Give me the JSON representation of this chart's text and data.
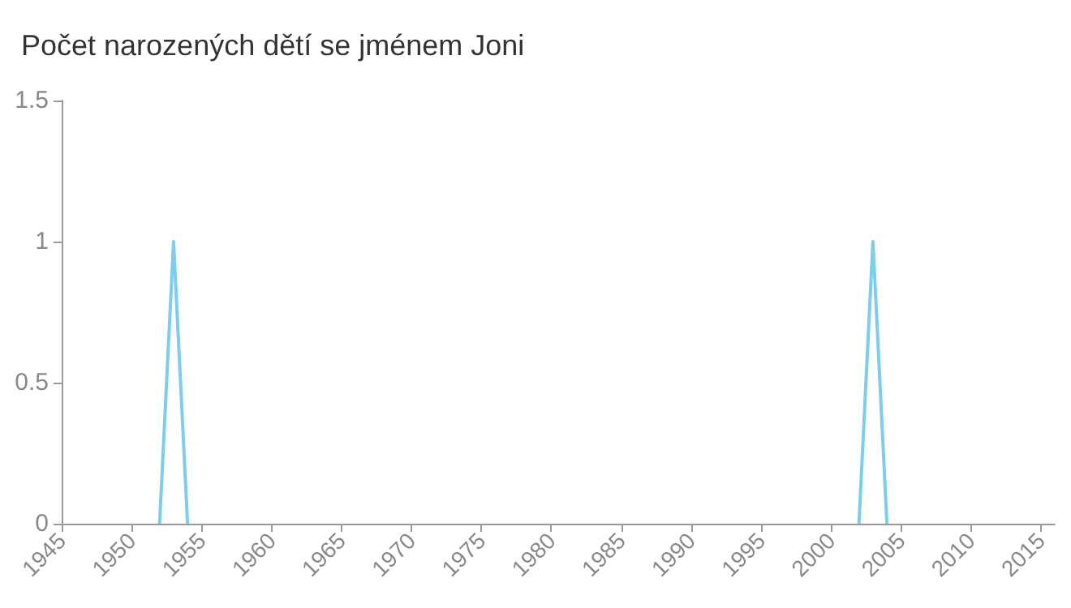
{
  "chart_data": {
    "type": "line",
    "title": "Počet narozených dětí se jménem Joni",
    "x": [
      1952,
      1953,
      1954,
      1978,
      2002,
      2003,
      2004
    ],
    "series": [
      {
        "color": "#7ccdee",
        "values": [
          0,
          1,
          0,
          null,
          0,
          1,
          0
        ]
      }
    ],
    "xlim": [
      1945,
      2016
    ],
    "xticks": [
      1945,
      1950,
      1955,
      1960,
      1965,
      1970,
      1975,
      1980,
      1985,
      1990,
      1995,
      2000,
      2005,
      2010,
      2015
    ],
    "ylim": [
      0,
      1.5
    ],
    "yticks": [
      0,
      0.5,
      1,
      1.5
    ],
    "grid": false,
    "marker": "none",
    "line_style": "solid"
  }
}
